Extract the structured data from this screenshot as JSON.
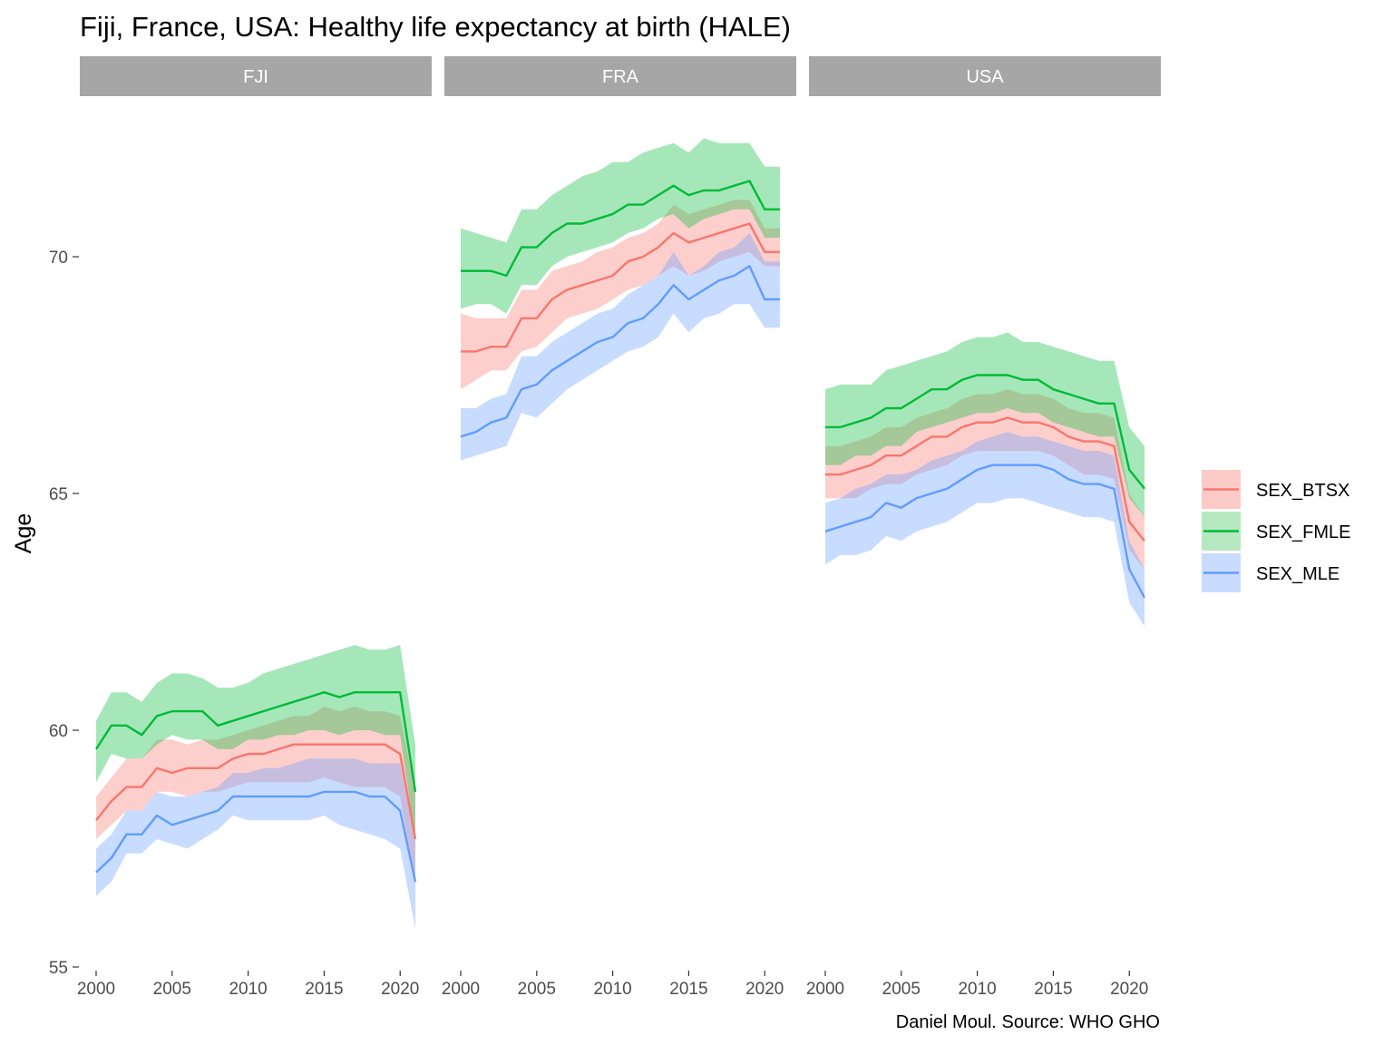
{
  "chart_data": {
    "type": "area",
    "title": "Fiji, France, USA: Healthy life expectancy at birth (HALE)",
    "xlabel": "",
    "ylabel": "Age",
    "caption": "Daniel Moul. Source: WHO GHO",
    "xlim": [
      2000,
      2021
    ],
    "ylim": [
      55,
      72.5
    ],
    "x_ticks": [
      2000,
      2005,
      2010,
      2015,
      2020
    ],
    "y_ticks": [
      55,
      60,
      65,
      70
    ],
    "grid": false,
    "legend_position": "right",
    "x": [
      2000,
      2001,
      2002,
      2003,
      2004,
      2005,
      2006,
      2007,
      2008,
      2009,
      2010,
      2011,
      2012,
      2013,
      2014,
      2015,
      2016,
      2017,
      2018,
      2019,
      2020,
      2021
    ],
    "legend": [
      {
        "name": "SEX_BTSX",
        "color": "#f8766d",
        "fill": "#fccbc8"
      },
      {
        "name": "SEX_FMLE",
        "color": "#00ba38",
        "fill": "#b6e9c0"
      },
      {
        "name": "SEX_MLE",
        "color": "#619cff",
        "fill": "#c9dbff"
      }
    ],
    "panels": [
      {
        "name": "FJI",
        "series": [
          {
            "name": "SEX_BTSX",
            "values": [
              58.1,
              58.5,
              58.8,
              58.8,
              59.2,
              59.1,
              59.2,
              59.2,
              59.2,
              59.4,
              59.5,
              59.5,
              59.6,
              59.7,
              59.7,
              59.7,
              59.7,
              59.7,
              59.7,
              59.7,
              59.5,
              57.7
            ],
            "lower": [
              57.7,
              58.0,
              58.3,
              58.3,
              58.7,
              58.7,
              58.6,
              58.7,
              58.7,
              58.8,
              58.9,
              58.9,
              58.9,
              58.9,
              58.9,
              59.0,
              58.9,
              58.8,
              58.8,
              58.8,
              58.6,
              56.7
            ],
            "upper": [
              58.6,
              59.0,
              59.4,
              59.4,
              59.8,
              59.8,
              59.7,
              59.8,
              59.8,
              59.9,
              60.0,
              60.1,
              60.2,
              60.3,
              60.3,
              60.5,
              60.4,
              60.5,
              60.4,
              60.4,
              60.3,
              58.7
            ]
          },
          {
            "name": "SEX_FMLE",
            "values": [
              59.6,
              60.1,
              60.1,
              59.9,
              60.3,
              60.4,
              60.4,
              60.4,
              60.1,
              60.2,
              60.3,
              60.4,
              60.5,
              60.6,
              60.7,
              60.8,
              60.7,
              60.8,
              60.8,
              60.8,
              60.8,
              58.7
            ],
            "lower": [
              58.9,
              59.5,
              59.4,
              59.4,
              59.7,
              59.9,
              59.8,
              59.8,
              59.6,
              59.6,
              59.8,
              59.8,
              59.9,
              59.9,
              60.0,
              60.0,
              59.9,
              60.0,
              60.0,
              59.9,
              59.9,
              57.7
            ],
            "upper": [
              60.2,
              60.8,
              60.8,
              60.6,
              61.0,
              61.2,
              61.2,
              61.1,
              60.9,
              60.9,
              61.0,
              61.2,
              61.3,
              61.4,
              61.5,
              61.6,
              61.7,
              61.8,
              61.7,
              61.7,
              61.8,
              59.7
            ]
          },
          {
            "name": "SEX_MLE",
            "values": [
              57.0,
              57.3,
              57.8,
              57.8,
              58.2,
              58.0,
              58.1,
              58.2,
              58.3,
              58.6,
              58.6,
              58.6,
              58.6,
              58.6,
              58.6,
              58.7,
              58.7,
              58.7,
              58.6,
              58.6,
              58.3,
              56.8
            ],
            "lower": [
              56.5,
              56.8,
              57.4,
              57.4,
              57.7,
              57.6,
              57.5,
              57.7,
              57.9,
              58.2,
              58.1,
              58.1,
              58.1,
              58.1,
              58.1,
              58.2,
              58.0,
              57.9,
              57.8,
              57.7,
              57.5,
              55.8
            ],
            "upper": [
              57.5,
              57.8,
              58.3,
              58.3,
              58.7,
              58.6,
              58.6,
              58.7,
              58.8,
              59.1,
              59.1,
              59.2,
              59.2,
              59.3,
              59.4,
              59.4,
              59.4,
              59.4,
              59.3,
              59.3,
              59.3,
              57.7
            ]
          }
        ]
      },
      {
        "name": "FRA",
        "series": [
          {
            "name": "SEX_BTSX",
            "values": [
              68.0,
              68.0,
              68.1,
              68.1,
              68.7,
              68.7,
              69.1,
              69.3,
              69.4,
              69.5,
              69.6,
              69.9,
              70.0,
              70.2,
              70.5,
              70.3,
              70.4,
              70.5,
              70.6,
              70.7,
              70.1,
              70.1
            ],
            "lower": [
              67.2,
              67.4,
              67.6,
              67.6,
              68.0,
              68.1,
              68.4,
              68.7,
              68.8,
              68.9,
              69.1,
              69.3,
              69.4,
              69.6,
              69.8,
              69.6,
              69.7,
              69.9,
              70.0,
              70.1,
              69.8,
              69.8
            ],
            "upper": [
              68.8,
              68.7,
              68.7,
              68.7,
              69.3,
              69.3,
              69.7,
              69.8,
              69.9,
              70.1,
              70.2,
              70.4,
              70.5,
              70.7,
              71.1,
              70.9,
              71.0,
              71.1,
              71.2,
              71.2,
              70.6,
              70.6
            ]
          },
          {
            "name": "SEX_FMLE",
            "values": [
              69.7,
              69.7,
              69.7,
              69.6,
              70.2,
              70.2,
              70.5,
              70.7,
              70.7,
              70.8,
              70.9,
              71.1,
              71.1,
              71.3,
              71.5,
              71.3,
              71.4,
              71.4,
              71.5,
              71.6,
              71.0,
              71.0
            ],
            "lower": [
              68.9,
              69.0,
              69.0,
              68.8,
              69.4,
              69.4,
              69.8,
              70.0,
              70.1,
              70.2,
              70.3,
              70.5,
              70.6,
              70.8,
              70.9,
              70.6,
              70.8,
              70.9,
              71.0,
              71.0,
              70.4,
              70.4
            ],
            "upper": [
              70.6,
              70.5,
              70.4,
              70.3,
              71.0,
              71.0,
              71.3,
              71.5,
              71.7,
              71.8,
              72.0,
              72.0,
              72.2,
              72.3,
              72.4,
              72.2,
              72.5,
              72.4,
              72.4,
              72.4,
              71.9,
              71.9
            ]
          },
          {
            "name": "SEX_MLE",
            "values": [
              66.2,
              66.3,
              66.5,
              66.6,
              67.2,
              67.3,
              67.6,
              67.8,
              68.0,
              68.2,
              68.3,
              68.6,
              68.7,
              69.0,
              69.4,
              69.1,
              69.3,
              69.5,
              69.6,
              69.8,
              69.1,
              69.1
            ],
            "lower": [
              65.7,
              65.8,
              65.9,
              66.0,
              66.7,
              66.6,
              66.9,
              67.2,
              67.4,
              67.6,
              67.8,
              68.0,
              68.1,
              68.3,
              68.8,
              68.4,
              68.7,
              68.8,
              69.0,
              69.0,
              68.5,
              68.5
            ],
            "upper": [
              66.8,
              66.8,
              67.0,
              67.1,
              67.9,
              67.9,
              68.2,
              68.4,
              68.6,
              68.8,
              68.9,
              69.2,
              69.4,
              69.6,
              70.1,
              69.6,
              69.8,
              70.1,
              70.2,
              70.5,
              69.9,
              69.9
            ]
          }
        ]
      },
      {
        "name": "USA",
        "series": [
          {
            "name": "SEX_BTSX",
            "values": [
              65.4,
              65.4,
              65.5,
              65.6,
              65.8,
              65.8,
              66.0,
              66.2,
              66.2,
              66.4,
              66.5,
              66.5,
              66.6,
              66.5,
              66.5,
              66.4,
              66.2,
              66.1,
              66.1,
              66.0,
              64.4,
              64.0
            ],
            "lower": [
              64.9,
              64.9,
              64.9,
              65.1,
              65.2,
              65.2,
              65.4,
              65.5,
              65.6,
              65.8,
              65.9,
              65.9,
              65.9,
              65.9,
              65.9,
              65.8,
              65.6,
              65.4,
              65.4,
              65.3,
              63.8,
              63.4
            ],
            "upper": [
              66.0,
              66.0,
              66.1,
              66.2,
              66.4,
              66.4,
              66.6,
              66.7,
              66.8,
              67.0,
              67.1,
              67.1,
              67.2,
              67.1,
              67.1,
              67.0,
              66.8,
              66.7,
              66.7,
              66.6,
              65.0,
              64.5
            ]
          },
          {
            "name": "SEX_FMLE",
            "values": [
              66.4,
              66.4,
              66.5,
              66.6,
              66.8,
              66.8,
              67.0,
              67.2,
              67.2,
              67.4,
              67.5,
              67.5,
              67.5,
              67.4,
              67.4,
              67.2,
              67.1,
              67.0,
              66.9,
              66.9,
              65.5,
              65.1
            ],
            "lower": [
              65.6,
              65.6,
              65.8,
              65.8,
              66.0,
              66.0,
              66.3,
              66.4,
              66.5,
              66.6,
              66.7,
              66.7,
              66.8,
              66.7,
              66.7,
              66.5,
              66.4,
              66.3,
              66.2,
              66.2,
              64.9,
              64.5
            ],
            "upper": [
              67.2,
              67.3,
              67.3,
              67.3,
              67.6,
              67.7,
              67.8,
              67.9,
              68.0,
              68.2,
              68.3,
              68.3,
              68.4,
              68.2,
              68.2,
              68.1,
              68.0,
              67.9,
              67.8,
              67.8,
              66.4,
              66.0
            ]
          },
          {
            "name": "SEX_MLE",
            "values": [
              64.2,
              64.3,
              64.4,
              64.5,
              64.8,
              64.7,
              64.9,
              65.0,
              65.1,
              65.3,
              65.5,
              65.6,
              65.6,
              65.6,
              65.6,
              65.5,
              65.3,
              65.2,
              65.2,
              65.1,
              63.4,
              62.8
            ],
            "lower": [
              63.5,
              63.7,
              63.7,
              63.8,
              64.1,
              64.0,
              64.2,
              64.3,
              64.4,
              64.6,
              64.8,
              64.8,
              64.9,
              64.9,
              64.8,
              64.7,
              64.6,
              64.5,
              64.5,
              64.4,
              62.7,
              62.2
            ],
            "upper": [
              64.8,
              64.9,
              65.1,
              65.2,
              65.4,
              65.4,
              65.5,
              65.7,
              65.8,
              65.9,
              66.1,
              66.2,
              66.3,
              66.2,
              66.2,
              66.1,
              66.0,
              65.9,
              65.9,
              65.8,
              64.0,
              63.4
            ]
          }
        ]
      }
    ]
  }
}
